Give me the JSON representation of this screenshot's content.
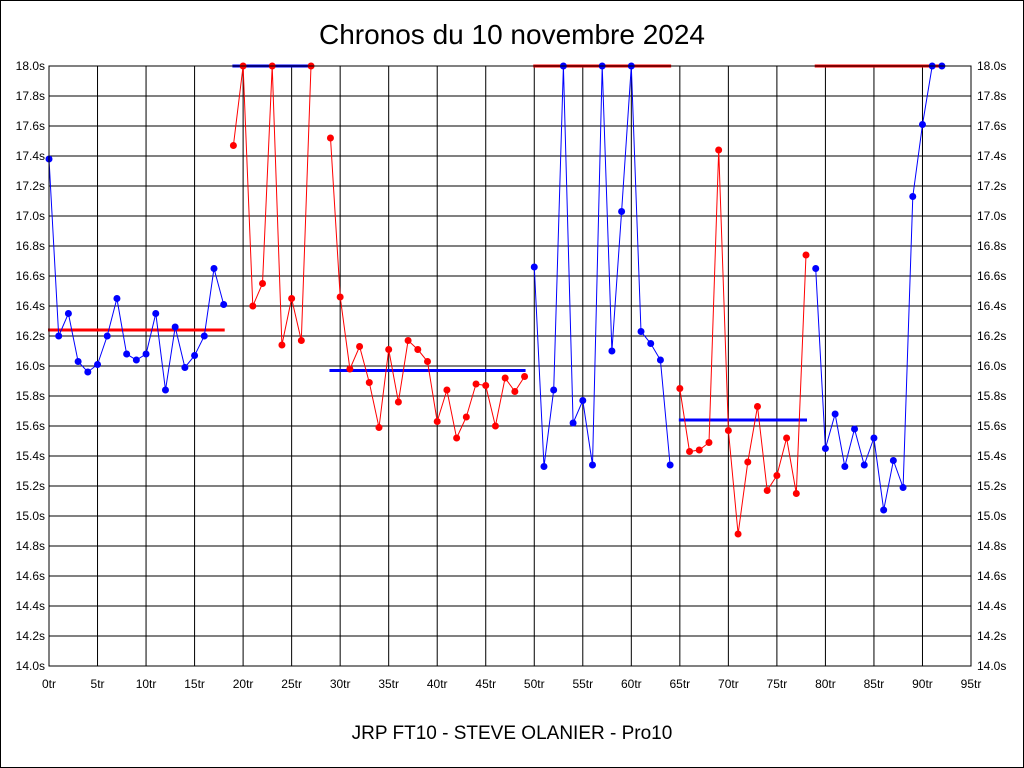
{
  "chart_data": {
    "type": "line",
    "title": "Chronos du 10 novembre 2024",
    "footer": "JRP FT10 - STEVE OLANIER - Pro10",
    "xlim": [
      0,
      95
    ],
    "ylim": [
      14.0,
      18.0
    ],
    "x_ticks": [
      {
        "value": 0,
        "label": "0tr"
      },
      {
        "value": 5,
        "label": "5tr"
      },
      {
        "value": 10,
        "label": "10tr"
      },
      {
        "value": 15,
        "label": "15tr"
      },
      {
        "value": 20,
        "label": "20tr"
      },
      {
        "value": 25,
        "label": "25tr"
      },
      {
        "value": 30,
        "label": "30tr"
      },
      {
        "value": 35,
        "label": "35tr"
      },
      {
        "value": 40,
        "label": "40tr"
      },
      {
        "value": 45,
        "label": "45tr"
      },
      {
        "value": 50,
        "label": "50tr"
      },
      {
        "value": 55,
        "label": "55tr"
      },
      {
        "value": 60,
        "label": "60tr"
      },
      {
        "value": 65,
        "label": "65tr"
      },
      {
        "value": 70,
        "label": "70tr"
      },
      {
        "value": 75,
        "label": "75tr"
      },
      {
        "value": 80,
        "label": "80tr"
      },
      {
        "value": 85,
        "label": "85tr"
      },
      {
        "value": 90,
        "label": "90tr"
      },
      {
        "value": 95,
        "label": "95tr"
      }
    ],
    "y_ticks": [
      {
        "value": 18.0,
        "label": "18.0s"
      },
      {
        "value": 17.8,
        "label": "17.8s"
      },
      {
        "value": 17.6,
        "label": "17.6s"
      },
      {
        "value": 17.4,
        "label": "17.4s"
      },
      {
        "value": 17.2,
        "label": "17.2s"
      },
      {
        "value": 17.0,
        "label": "17.0s"
      },
      {
        "value": 16.8,
        "label": "16.8s"
      },
      {
        "value": 16.6,
        "label": "16.6s"
      },
      {
        "value": 16.4,
        "label": "16.4s"
      },
      {
        "value": 16.2,
        "label": "16.2s"
      },
      {
        "value": 16.0,
        "label": "16.0s"
      },
      {
        "value": 15.8,
        "label": "15.8s"
      },
      {
        "value": 15.6,
        "label": "15.6s"
      },
      {
        "value": 15.4,
        "label": "15.4s"
      },
      {
        "value": 15.2,
        "label": "15.2s"
      },
      {
        "value": 15.0,
        "label": "15.0s"
      },
      {
        "value": 14.8,
        "label": "14.8s"
      },
      {
        "value": 14.6,
        "label": "14.6s"
      },
      {
        "value": 14.4,
        "label": "14.4s"
      },
      {
        "value": 14.2,
        "label": "14.2s"
      },
      {
        "value": 14.0,
        "label": "14.0s"
      }
    ],
    "grid": true,
    "series": [
      {
        "color": "#0000ff",
        "x": [
          0,
          1,
          2,
          3,
          4,
          5,
          6,
          7,
          8,
          9,
          10,
          11,
          12,
          13,
          14,
          15,
          16,
          17,
          18
        ],
        "y": [
          17.38,
          16.2,
          16.35,
          16.03,
          15.96,
          16.01,
          16.2,
          16.45,
          16.08,
          16.04,
          16.08,
          16.35,
          15.84,
          16.26,
          15.99,
          16.07,
          16.2,
          16.65,
          16.41
        ],
        "average": {
          "value": 16.24,
          "x": [
            0,
            18
          ],
          "color": "#ff0000"
        }
      },
      {
        "color": "#ff0000",
        "x": [
          19,
          20,
          21,
          22,
          23,
          24,
          25,
          26,
          27
        ],
        "y": [
          17.47,
          18.0,
          16.4,
          16.55,
          18.0,
          16.14,
          16.45,
          16.17,
          18.0
        ],
        "average": {
          "value": 18.0,
          "x": [
            19,
            27
          ],
          "color": "#0000ff"
        }
      },
      {
        "color": "#ff0000",
        "x": [
          29,
          30,
          31,
          32,
          33,
          34,
          35,
          36,
          37,
          38,
          39,
          40,
          41,
          42,
          43,
          44,
          45,
          46,
          47,
          48,
          49
        ],
        "y": [
          17.52,
          16.46,
          15.98,
          16.13,
          15.89,
          15.59,
          16.11,
          15.76,
          16.17,
          16.11,
          16.03,
          15.63,
          15.84,
          15.52,
          15.66,
          15.88,
          15.87,
          15.6,
          15.92,
          15.83,
          15.93
        ],
        "average": {
          "value": 15.97,
          "x": [
            29,
            49
          ],
          "color": "#0000ff"
        }
      },
      {
        "color": "#0000ff",
        "x": [
          50,
          51,
          52,
          53,
          54,
          55,
          56,
          57,
          58,
          59,
          60,
          61,
          62,
          63,
          64
        ],
        "y": [
          16.66,
          15.33,
          15.84,
          18.0,
          15.62,
          15.77,
          15.34,
          18.0,
          16.1,
          17.03,
          18.0,
          16.23,
          16.15,
          16.04,
          15.34
        ],
        "average": {
          "value": 18.0,
          "x": [
            50,
            64
          ],
          "color": "#ff0000"
        }
      },
      {
        "color": "#ff0000",
        "x": [
          65,
          66,
          67,
          68,
          69,
          70,
          71,
          72,
          73,
          74,
          75,
          76,
          77,
          78
        ],
        "y": [
          15.85,
          15.43,
          15.44,
          15.49,
          17.44,
          15.57,
          14.88,
          15.36,
          15.73,
          15.17,
          15.27,
          15.52,
          15.15,
          16.74
        ],
        "average": {
          "value": 15.64,
          "x": [
            65,
            78
          ],
          "color": "#0000ff"
        }
      },
      {
        "color": "#0000ff",
        "x": [
          79,
          80,
          81,
          82,
          83,
          84,
          85,
          86,
          87,
          88,
          89,
          90,
          91,
          92
        ],
        "y": [
          16.65,
          15.45,
          15.68,
          15.33,
          15.58,
          15.34,
          15.52,
          15.04,
          15.37,
          15.19,
          17.13,
          17.61,
          18.0,
          18.0
        ],
        "average": {
          "value": 18.0,
          "x": [
            79,
            92
          ],
          "color": "#ff0000"
        }
      }
    ]
  }
}
